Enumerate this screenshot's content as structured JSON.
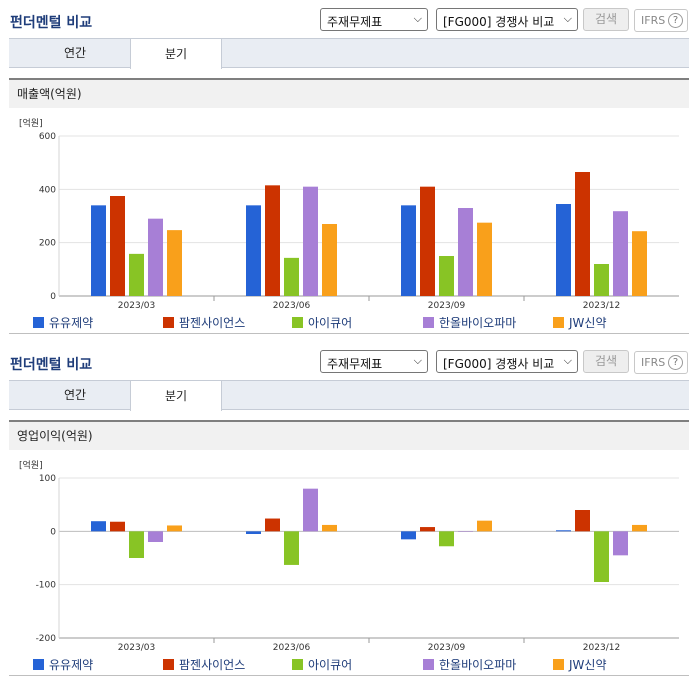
{
  "sections": [
    {
      "title": "펀더멘털 비교",
      "select1": "주재무제표",
      "select2": "[FG000] 경쟁사 비교",
      "search_label": "검색",
      "ifrs_label": "IFRS",
      "help_glyph": "?",
      "tabs": [
        "연간",
        "분기"
      ],
      "active_tab": "분기",
      "panel_title": "매출액(억원)"
    },
    {
      "title": "펀더멘털 비교",
      "select1": "주재무제표",
      "select2": "[FG000] 경쟁사 비교",
      "search_label": "검색",
      "ifrs_label": "IFRS",
      "help_glyph": "?",
      "tabs": [
        "연간",
        "분기"
      ],
      "active_tab": "분기",
      "panel_title": "영업이익(억원)"
    }
  ],
  "series_colors": [
    "#2563d6",
    "#cc3300",
    "#88c425",
    "#a77fd6",
    "#f9a01b"
  ],
  "chart_data": [
    {
      "type": "bar",
      "unit_label": "[억원]",
      "categories": [
        "2023/03",
        "2023/06",
        "2023/09",
        "2023/12"
      ],
      "ylim": [
        0,
        600
      ],
      "yticks": [
        0,
        200,
        400,
        600
      ],
      "grid": true,
      "legend_position": "bottom",
      "series": [
        {
          "name": "유유제약",
          "values": [
            340,
            340,
            340,
            345
          ]
        },
        {
          "name": "팜젠사이언스",
          "values": [
            375,
            415,
            410,
            465
          ]
        },
        {
          "name": "아이큐어",
          "values": [
            158,
            143,
            150,
            120
          ]
        },
        {
          "name": "한올바이오파마",
          "values": [
            290,
            410,
            330,
            318
          ]
        },
        {
          "name": "JW신약",
          "values": [
            247,
            270,
            275,
            243
          ]
        }
      ]
    },
    {
      "type": "bar",
      "unit_label": "[억원]",
      "categories": [
        "2023/03",
        "2023/06",
        "2023/09",
        "2023/12"
      ],
      "ylim": [
        -200,
        100
      ],
      "yticks": [
        -200,
        -100,
        0,
        100
      ],
      "grid": true,
      "legend_position": "bottom",
      "series": [
        {
          "name": "유유제약",
          "values": [
            19,
            -5,
            -15,
            2
          ]
        },
        {
          "name": "팜젠사이언스",
          "values": [
            18,
            24,
            8,
            40
          ]
        },
        {
          "name": "아이큐어",
          "values": [
            -50,
            -63,
            -28,
            -95
          ]
        },
        {
          "name": "한올바이오파마",
          "values": [
            -20,
            80,
            0,
            -45
          ]
        },
        {
          "name": "JW신약",
          "values": [
            11,
            12,
            20,
            12
          ]
        }
      ]
    }
  ]
}
